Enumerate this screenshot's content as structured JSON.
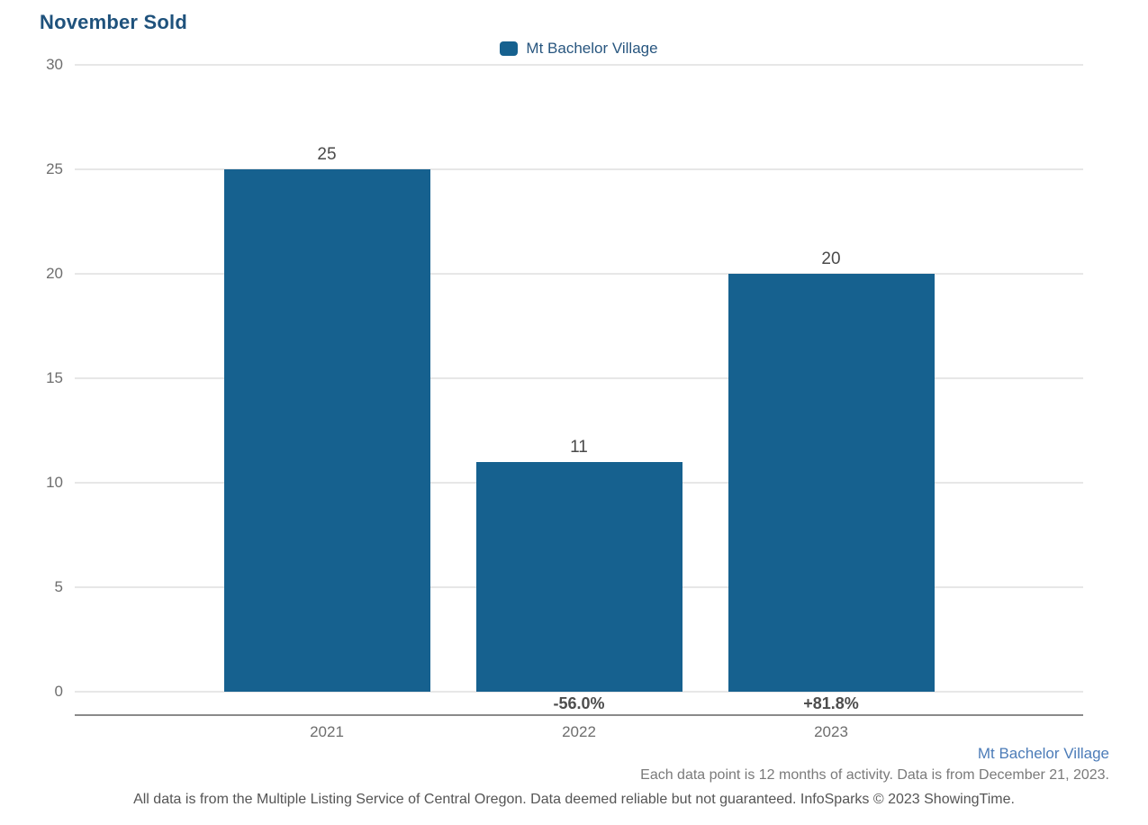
{
  "title": "November Sold",
  "legend": {
    "label": "Mt Bachelor Village",
    "swatch_color": "#16618F"
  },
  "chart_data": {
    "type": "bar",
    "title": "November Sold",
    "series_name": "Mt Bachelor Village",
    "categories": [
      "2021",
      "2022",
      "2023"
    ],
    "values": [
      25,
      11,
      20
    ],
    "value_labels": [
      "25",
      "11",
      "20"
    ],
    "pct_change_labels": [
      "",
      "-56.0%",
      "+81.8%"
    ],
    "xlabel": "",
    "ylabel": "",
    "ylim": [
      0,
      30
    ],
    "ytick_interval": 5,
    "ytick_labels": [
      "0",
      "5",
      "10",
      "15",
      "20",
      "25",
      "30"
    ],
    "grid": true,
    "legend_position": "top-center",
    "bar_color": "#16618F"
  },
  "footer": {
    "series_link": "Mt Bachelor Village",
    "data_note": "Each data point is 12 months of activity. Data is from December 21, 2023.",
    "disclaimer": "All data is from the Multiple Listing Service of Central Oregon. Data deemed reliable but not guaranteed. InfoSparks © 2023 ShowingTime."
  },
  "colors": {
    "title_text": "#1F527C",
    "legend_text": "#28567F",
    "bar": "#16618F",
    "value_label": "#4a4a4a",
    "pct_label": "#4d4d4d",
    "tick_label": "#6e6e6e",
    "gridline": "#e7e7e7",
    "axis_line": "#8a8a8a",
    "footer_link": "#4C7CB8",
    "footer_note": "#7a7a7a",
    "disclaimer_text": "#555555"
  }
}
